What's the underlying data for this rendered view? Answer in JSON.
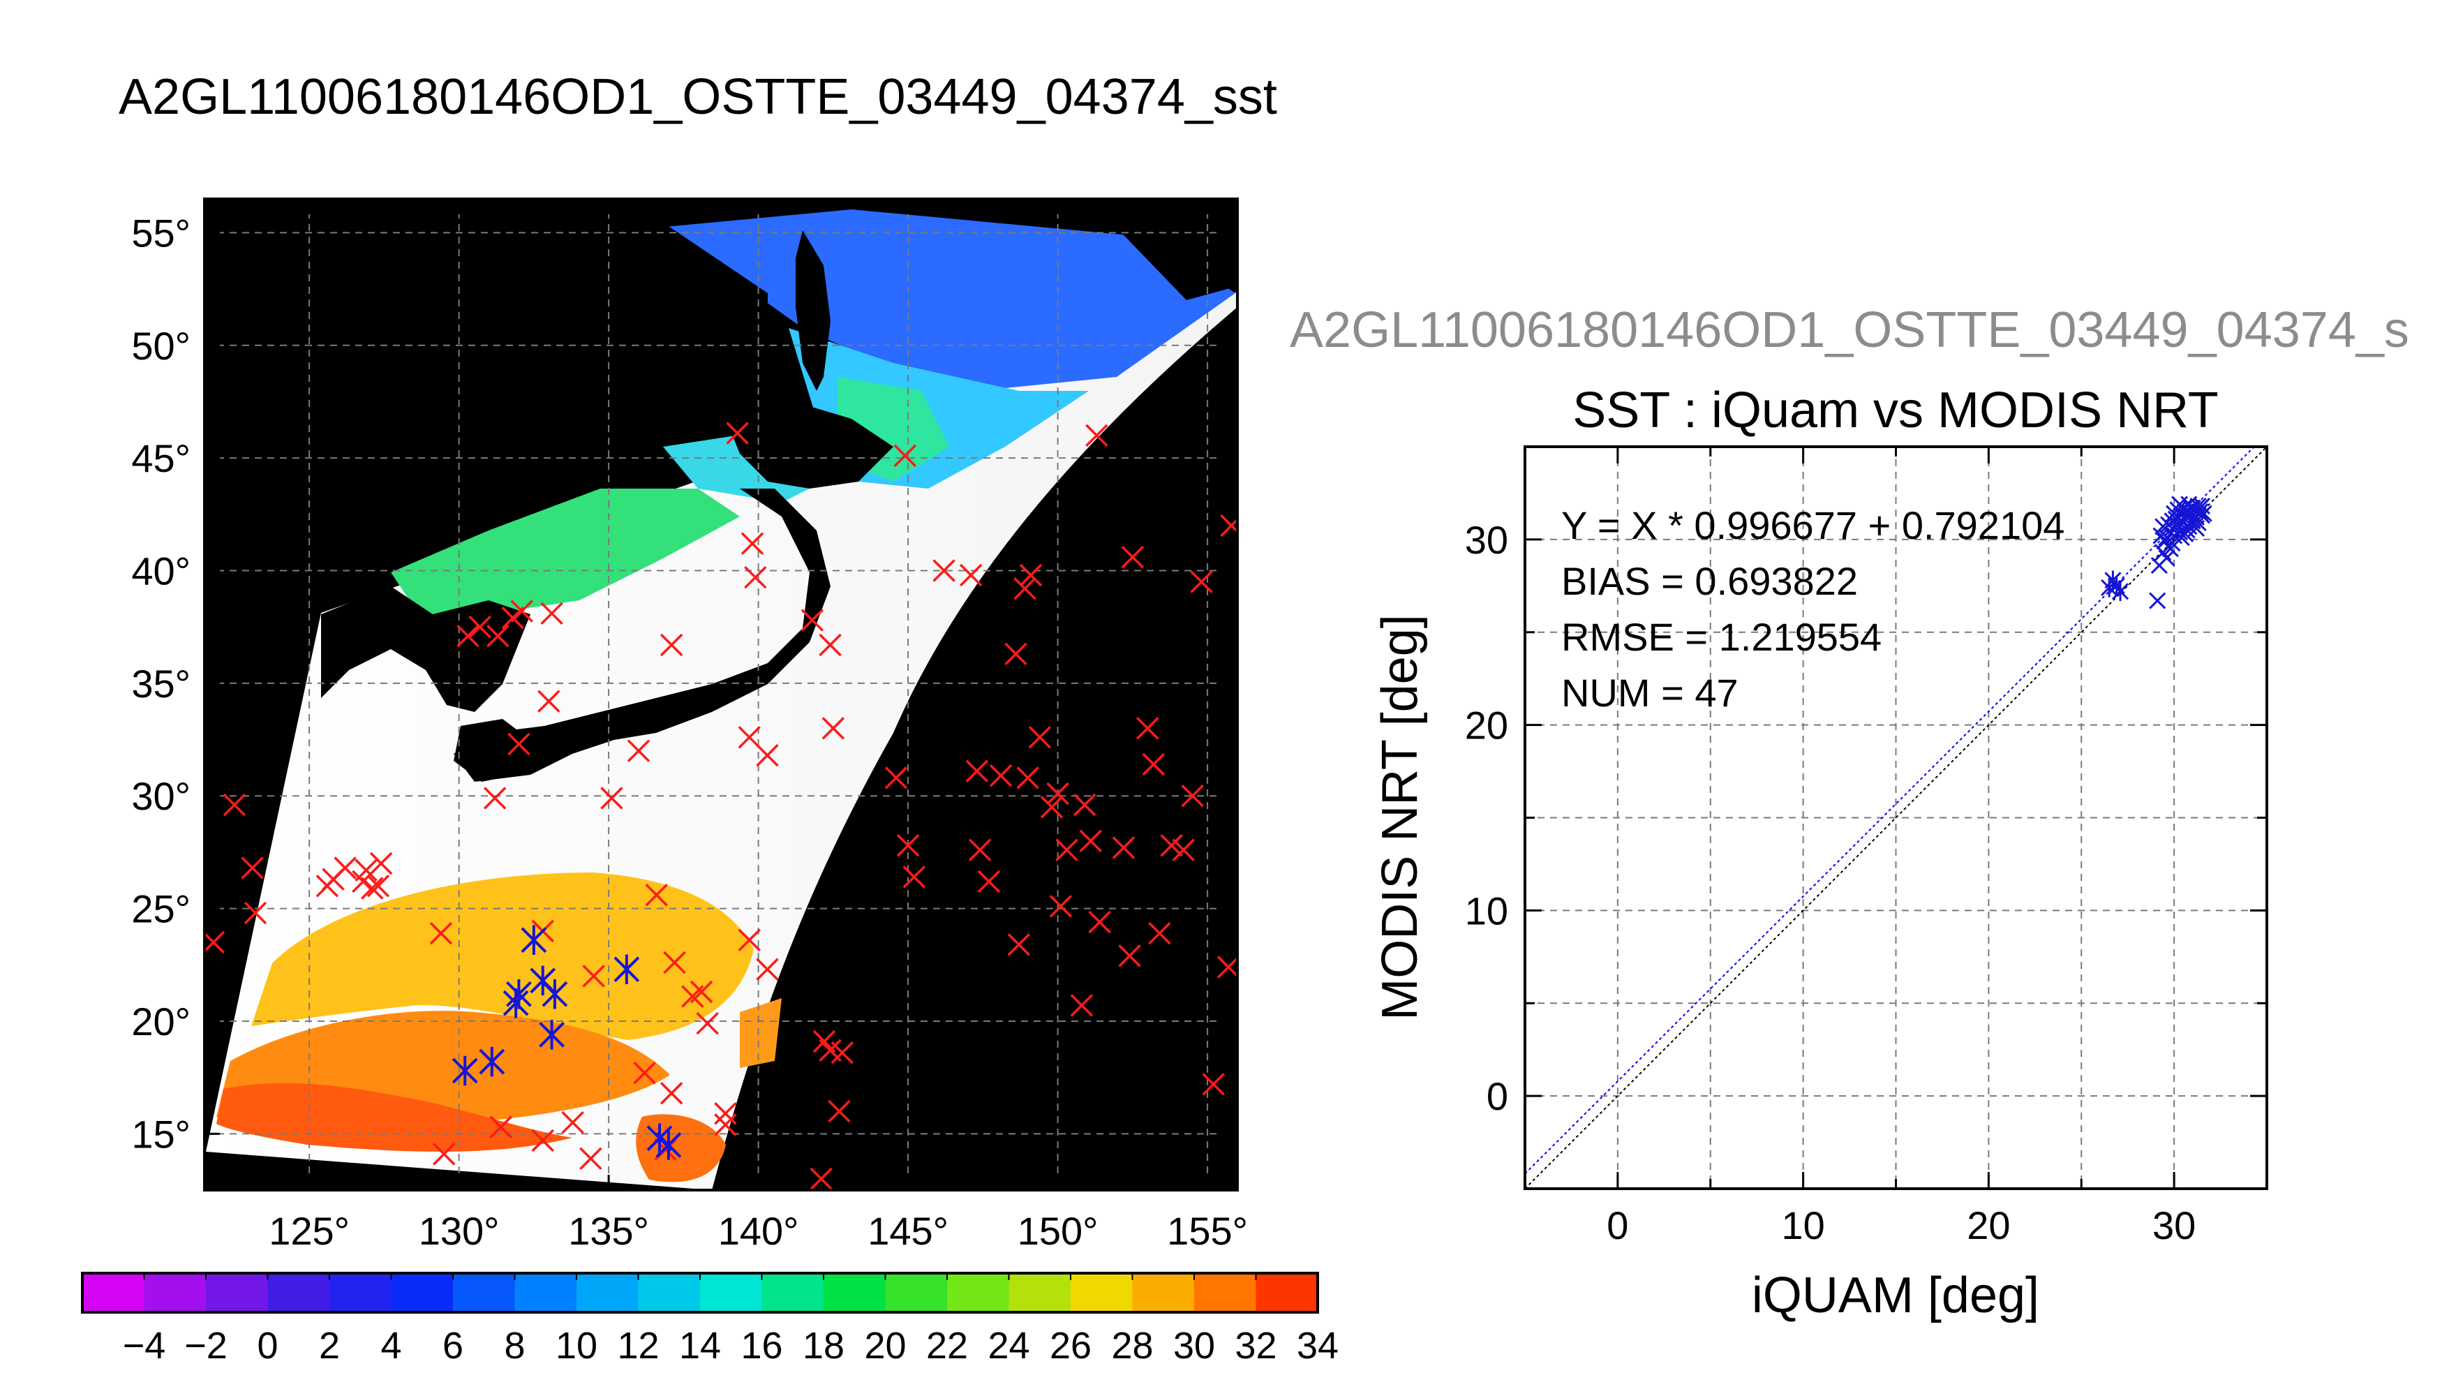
{
  "main_title": "A2GL11006180146OD1_OSTTE_03449_04374_sst",
  "colors": {
    "map_background": "#000000",
    "land": "#000000",
    "cloud": "#ffffff",
    "marker_red": "#ff1a1a",
    "marker_blue": "#1515d6",
    "regression_line": "#0000ff"
  },
  "chart_data": [
    {
      "type": "map",
      "lon_range": [
        121.5,
        156.0
      ],
      "lat_range": [
        12.5,
        56.5
      ],
      "lon_ticks": [
        "125°",
        "130°",
        "135°",
        "140°",
        "145°",
        "150°",
        "155°"
      ],
      "lat_ticks": [
        "55°",
        "50°",
        "45°",
        "40°",
        "35°",
        "30°",
        "25°",
        "20°",
        "15°"
      ],
      "grid": true,
      "markers_red_lonlat": [
        [
          121.8,
          23.5
        ],
        [
          122.5,
          29.6
        ],
        [
          123.1,
          26.8
        ],
        [
          123.2,
          24.8
        ],
        [
          125.6,
          26.0
        ],
        [
          125.8,
          26.3
        ],
        [
          126.2,
          26.8
        ],
        [
          126.8,
          26.2
        ],
        [
          126.9,
          26.7
        ],
        [
          127.1,
          25.9
        ],
        [
          127.3,
          26.0
        ],
        [
          127.4,
          27.0
        ],
        [
          130.3,
          37.1
        ],
        [
          130.7,
          37.5
        ],
        [
          131.3,
          37.1
        ],
        [
          131.8,
          37.9
        ],
        [
          132.1,
          38.2
        ],
        [
          133.1,
          38.1
        ],
        [
          131.2,
          29.9
        ],
        [
          132.0,
          32.3
        ],
        [
          133.0,
          34.2
        ],
        [
          135.1,
          29.9
        ],
        [
          136.0,
          32.0
        ],
        [
          137.1,
          36.7
        ],
        [
          139.3,
          46.1
        ],
        [
          139.8,
          41.2
        ],
        [
          139.9,
          39.7
        ],
        [
          139.7,
          32.6
        ],
        [
          140.3,
          31.8
        ],
        [
          141.8,
          37.8
        ],
        [
          142.4,
          36.7
        ],
        [
          142.5,
          33.0
        ],
        [
          144.6,
          30.8
        ],
        [
          144.9,
          45.1
        ],
        [
          146.2,
          40.0
        ],
        [
          147.1,
          39.8
        ],
        [
          148.6,
          36.3
        ],
        [
          148.9,
          39.2
        ],
        [
          149.1,
          39.8
        ],
        [
          147.3,
          31.1
        ],
        [
          148.1,
          30.9
        ],
        [
          149.0,
          30.8
        ],
        [
          149.4,
          32.6
        ],
        [
          150.0,
          30.1
        ],
        [
          151.3,
          46.0
        ],
        [
          152.5,
          40.6
        ],
        [
          154.8,
          39.5
        ],
        [
          155.8,
          42.0
        ],
        [
          153.0,
          33.0
        ],
        [
          153.2,
          31.4
        ],
        [
          154.5,
          30.0
        ],
        [
          145.0,
          27.8
        ],
        [
          145.2,
          26.4
        ],
        [
          147.4,
          27.6
        ],
        [
          147.7,
          26.2
        ],
        [
          148.7,
          23.4
        ],
        [
          149.8,
          29.5
        ],
        [
          150.3,
          27.6
        ],
        [
          150.1,
          25.1
        ],
        [
          150.9,
          29.6
        ],
        [
          151.1,
          28.0
        ],
        [
          152.2,
          27.7
        ],
        [
          151.4,
          24.4
        ],
        [
          150.8,
          20.7
        ],
        [
          152.4,
          22.9
        ],
        [
          153.4,
          23.9
        ],
        [
          153.8,
          27.8
        ],
        [
          154.2,
          27.6
        ],
        [
          155.7,
          22.4
        ],
        [
          155.2,
          17.2
        ],
        [
          129.4,
          23.9
        ],
        [
          132.8,
          24.0
        ],
        [
          134.5,
          22.0
        ],
        [
          136.6,
          25.6
        ],
        [
          137.2,
          22.6
        ],
        [
          137.8,
          21.1
        ],
        [
          138.1,
          21.3
        ],
        [
          138.3,
          19.9
        ],
        [
          139.7,
          23.6
        ],
        [
          140.3,
          22.3
        ],
        [
          136.2,
          17.7
        ],
        [
          137.1,
          16.8
        ],
        [
          138.9,
          15.9
        ],
        [
          138.9,
          15.4
        ],
        [
          132.8,
          14.7
        ],
        [
          133.8,
          15.5
        ],
        [
          134.4,
          13.9
        ],
        [
          136.9,
          14.3
        ],
        [
          131.4,
          15.3
        ],
        [
          129.5,
          14.1
        ],
        [
          142.2,
          19.1
        ],
        [
          142.4,
          18.7
        ],
        [
          142.8,
          18.6
        ],
        [
          142.7,
          16.0
        ],
        [
          142.1,
          13.0
        ]
      ],
      "markers_blue_lonlat": [
        [
          132.5,
          23.6
        ],
        [
          132.0,
          21.2
        ],
        [
          131.9,
          20.8
        ],
        [
          132.8,
          21.8
        ],
        [
          133.2,
          21.2
        ],
        [
          133.1,
          19.4
        ],
        [
          130.2,
          17.8
        ],
        [
          131.1,
          18.2
        ],
        [
          135.6,
          22.3
        ],
        [
          136.7,
          14.8
        ],
        [
          137.0,
          14.5
        ]
      ]
    },
    {
      "type": "colorbar",
      "range": [
        -5,
        35
      ],
      "step": 2,
      "tick_labels": [
        "−4",
        "−2",
        "0",
        "2",
        "4",
        "6",
        "8",
        "10",
        "12",
        "14",
        "16",
        "18",
        "20",
        "22",
        "24",
        "26",
        "28",
        "30",
        "32",
        "34"
      ]
    },
    {
      "type": "scatter",
      "supertitle": "A2GL11006180146OD1_OSTTE_03449_04374_s",
      "title": "SST : iQuam vs MODIS NRT",
      "xlabel": "iQUAM [deg]",
      "ylabel": "MODIS NRT [deg]",
      "xlim": [
        -5,
        35
      ],
      "ylim": [
        -5,
        35
      ],
      "x_ticks": [
        0,
        10,
        20,
        30
      ],
      "y_ticks": [
        0,
        10,
        20,
        30
      ],
      "grid": true,
      "stats": [
        "Y = X * 0.996677 + 0.792104",
        "BIAS = 0.693822",
        "RMSE = 1.219554",
        "NUM = 47"
      ],
      "regression": {
        "slope": 0.996677,
        "intercept": 0.792104
      },
      "points": [
        [
          26.5,
          27.4
        ],
        [
          26.7,
          27.8
        ],
        [
          26.9,
          27.5
        ],
        [
          27.1,
          27.2
        ],
        [
          29.1,
          26.7
        ],
        [
          29.2,
          28.6
        ],
        [
          29.4,
          29.3
        ],
        [
          29.5,
          29.9
        ],
        [
          29.6,
          30.1
        ],
        [
          29.8,
          29.5
        ],
        [
          29.9,
          30.6
        ],
        [
          30.0,
          30.2
        ],
        [
          30.1,
          31.1
        ],
        [
          30.2,
          30.8
        ],
        [
          30.3,
          30.4
        ],
        [
          30.4,
          31.3
        ],
        [
          30.5,
          30.9
        ],
        [
          30.6,
          31.5
        ],
        [
          30.7,
          31.2
        ],
        [
          30.8,
          30.7
        ],
        [
          30.9,
          31.4
        ],
        [
          31.0,
          31.0
        ],
        [
          31.1,
          31.6
        ],
        [
          31.2,
          31.2
        ],
        [
          31.3,
          30.9
        ],
        [
          31.4,
          31.5
        ],
        [
          31.5,
          31.3
        ],
        [
          30.2,
          31.6
        ],
        [
          29.7,
          30.8
        ],
        [
          30.9,
          31.7
        ],
        [
          31.2,
          30.6
        ],
        [
          30.4,
          30.1
        ],
        [
          29.9,
          29.8
        ],
        [
          30.6,
          30.3
        ],
        [
          31.6,
          31.4
        ],
        [
          29.3,
          30.2
        ],
        [
          30.0,
          31.4
        ],
        [
          30.8,
          31.9
        ],
        [
          31.3,
          31.8
        ],
        [
          30.5,
          31.7
        ],
        [
          29.6,
          29.0
        ],
        [
          29.9,
          31.0
        ],
        [
          30.7,
          30.5
        ],
        [
          31.0,
          31.7
        ],
        [
          30.3,
          31.9
        ],
        [
          31.5,
          31.8
        ],
        [
          29.4,
          30.7
        ]
      ]
    }
  ]
}
